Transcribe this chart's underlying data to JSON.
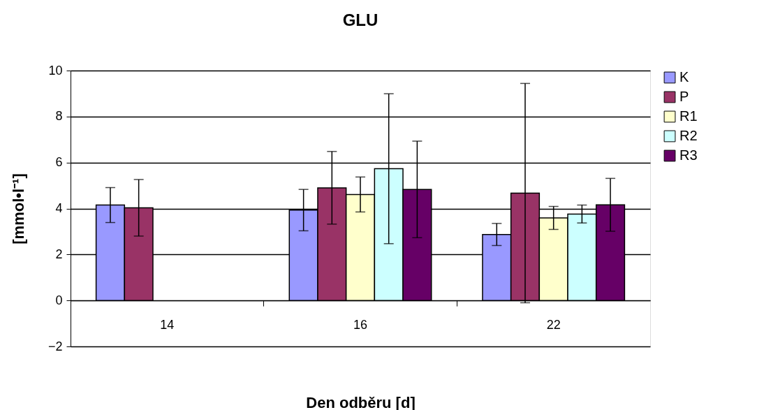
{
  "chart_data": {
    "type": "bar",
    "title": "GLU",
    "xlabel": "Den odběru [d]",
    "ylabel": "[mmol•l⁻¹]",
    "categories": [
      "14",
      "16",
      "22"
    ],
    "series": [
      {
        "name": "K",
        "color": "#9999ff",
        "values": [
          4.15,
          3.93,
          2.87
        ],
        "errors": [
          0.76,
          0.9,
          0.48
        ]
      },
      {
        "name": "P",
        "color": "#993366",
        "values": [
          4.03,
          4.9,
          4.67
        ],
        "errors": [
          1.23,
          1.58,
          4.77
        ]
      },
      {
        "name": "R1",
        "color": "#ffffcc",
        "values": [
          null,
          4.61,
          3.59
        ],
        "errors": [
          null,
          0.76,
          0.5
        ]
      },
      {
        "name": "R2",
        "color": "#ccffff",
        "values": [
          null,
          5.73,
          3.76
        ],
        "errors": [
          null,
          3.26,
          0.39
        ]
      },
      {
        "name": "R3",
        "color": "#660066",
        "values": [
          null,
          4.83,
          4.16
        ],
        "errors": [
          null,
          2.1,
          1.15
        ]
      }
    ],
    "ylim": [
      -2,
      10
    ],
    "yticks": [
      -2,
      0,
      2,
      4,
      6,
      8,
      10
    ],
    "grid": "y",
    "legend": "right"
  }
}
